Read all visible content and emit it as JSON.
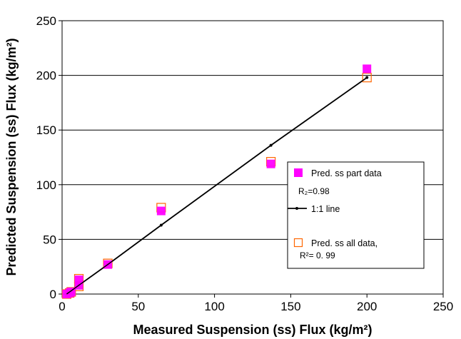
{
  "chart_data": {
    "type": "scatter",
    "xlabel": "Measured Suspension (ss) Flux (kg/m²)",
    "ylabel": "Predicted Suspension (ss) Flux (kg/m²)",
    "xlim": [
      0,
      250
    ],
    "ylim": [
      0,
      250
    ],
    "x_ticks": [
      "0",
      "50",
      "100",
      "150",
      "200",
      "250"
    ],
    "y_ticks": [
      "0",
      "50",
      "100",
      "150",
      "200",
      "250"
    ],
    "grid": "horizontal major gridlines",
    "legend_position": "right-middle",
    "series": [
      {
        "name": "Pred. ss part data",
        "marker": "filled-square",
        "color": "#ff00ff",
        "points": [
          [
            3,
            0
          ],
          [
            5,
            1
          ],
          [
            6,
            2
          ],
          [
            11,
            13
          ],
          [
            11,
            8
          ],
          [
            30,
            27
          ],
          [
            65,
            76
          ],
          [
            137,
            119
          ],
          [
            200,
            206
          ]
        ]
      },
      {
        "name": "Pred. ss all data,",
        "marker": "open-square",
        "color": "#ff6600",
        "points": [
          [
            3,
            0
          ],
          [
            5,
            1
          ],
          [
            6,
            2
          ],
          [
            11,
            14
          ],
          [
            11,
            7
          ],
          [
            30,
            28
          ],
          [
            65,
            79
          ],
          [
            137,
            121
          ],
          [
            200,
            198
          ]
        ]
      },
      {
        "name": "1:1 line",
        "marker": "line-with-dots",
        "color": "#000000",
        "points": [
          [
            3,
            0
          ],
          [
            5,
            2
          ],
          [
            11,
            8
          ],
          [
            30,
            27
          ],
          [
            65,
            63
          ],
          [
            137,
            136
          ],
          [
            200,
            198
          ]
        ]
      }
    ],
    "legend": {
      "r2_part": "R₂=0.98",
      "r2_all": "R²= 0. 99"
    }
  }
}
